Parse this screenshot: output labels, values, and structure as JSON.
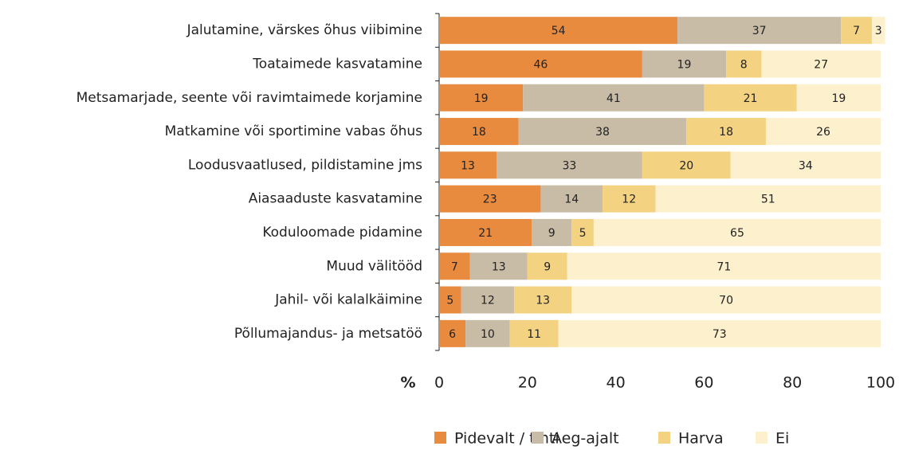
{
  "chart_data": {
    "type": "stacked_bar_horizontal",
    "categories": [
      "Jalutamine, värskes õhus viibimine",
      "Toataimede kasvatamine",
      "Metsamarjade, seente või ravimtaimede korjamine",
      "Matkamine või sportimine vabas õhus",
      "Loodusvaatlused, pildistamine jms",
      "Aiasaaduste kasvatamine",
      "Koduloomade pidamine",
      "Muud välitööd",
      "Jahil- või kalalkäimine",
      "Põllumajandus- ja metsatöö"
    ],
    "series": [
      {
        "name": "Pidevalt / tihti",
        "color": "#e98b3e",
        "values": [
          54,
          46,
          19,
          18,
          13,
          23,
          21,
          7,
          5,
          6
        ]
      },
      {
        "name": "Aeg-ajalt",
        "color": "#c8bca7",
        "values": [
          37,
          19,
          41,
          38,
          33,
          14,
          9,
          13,
          12,
          10
        ]
      },
      {
        "name": "Harva",
        "color": "#f3d382",
        "values": [
          7,
          8,
          21,
          18,
          20,
          12,
          5,
          9,
          13,
          11
        ]
      },
      {
        "name": "Ei",
        "color": "#fdf0cc",
        "values": [
          3,
          27,
          19,
          26,
          34,
          51,
          65,
          71,
          70,
          73
        ]
      }
    ],
    "xlabel": "%",
    "xlim": [
      0,
      100
    ],
    "xticks": [
      0,
      20,
      40,
      60,
      80,
      100
    ]
  }
}
